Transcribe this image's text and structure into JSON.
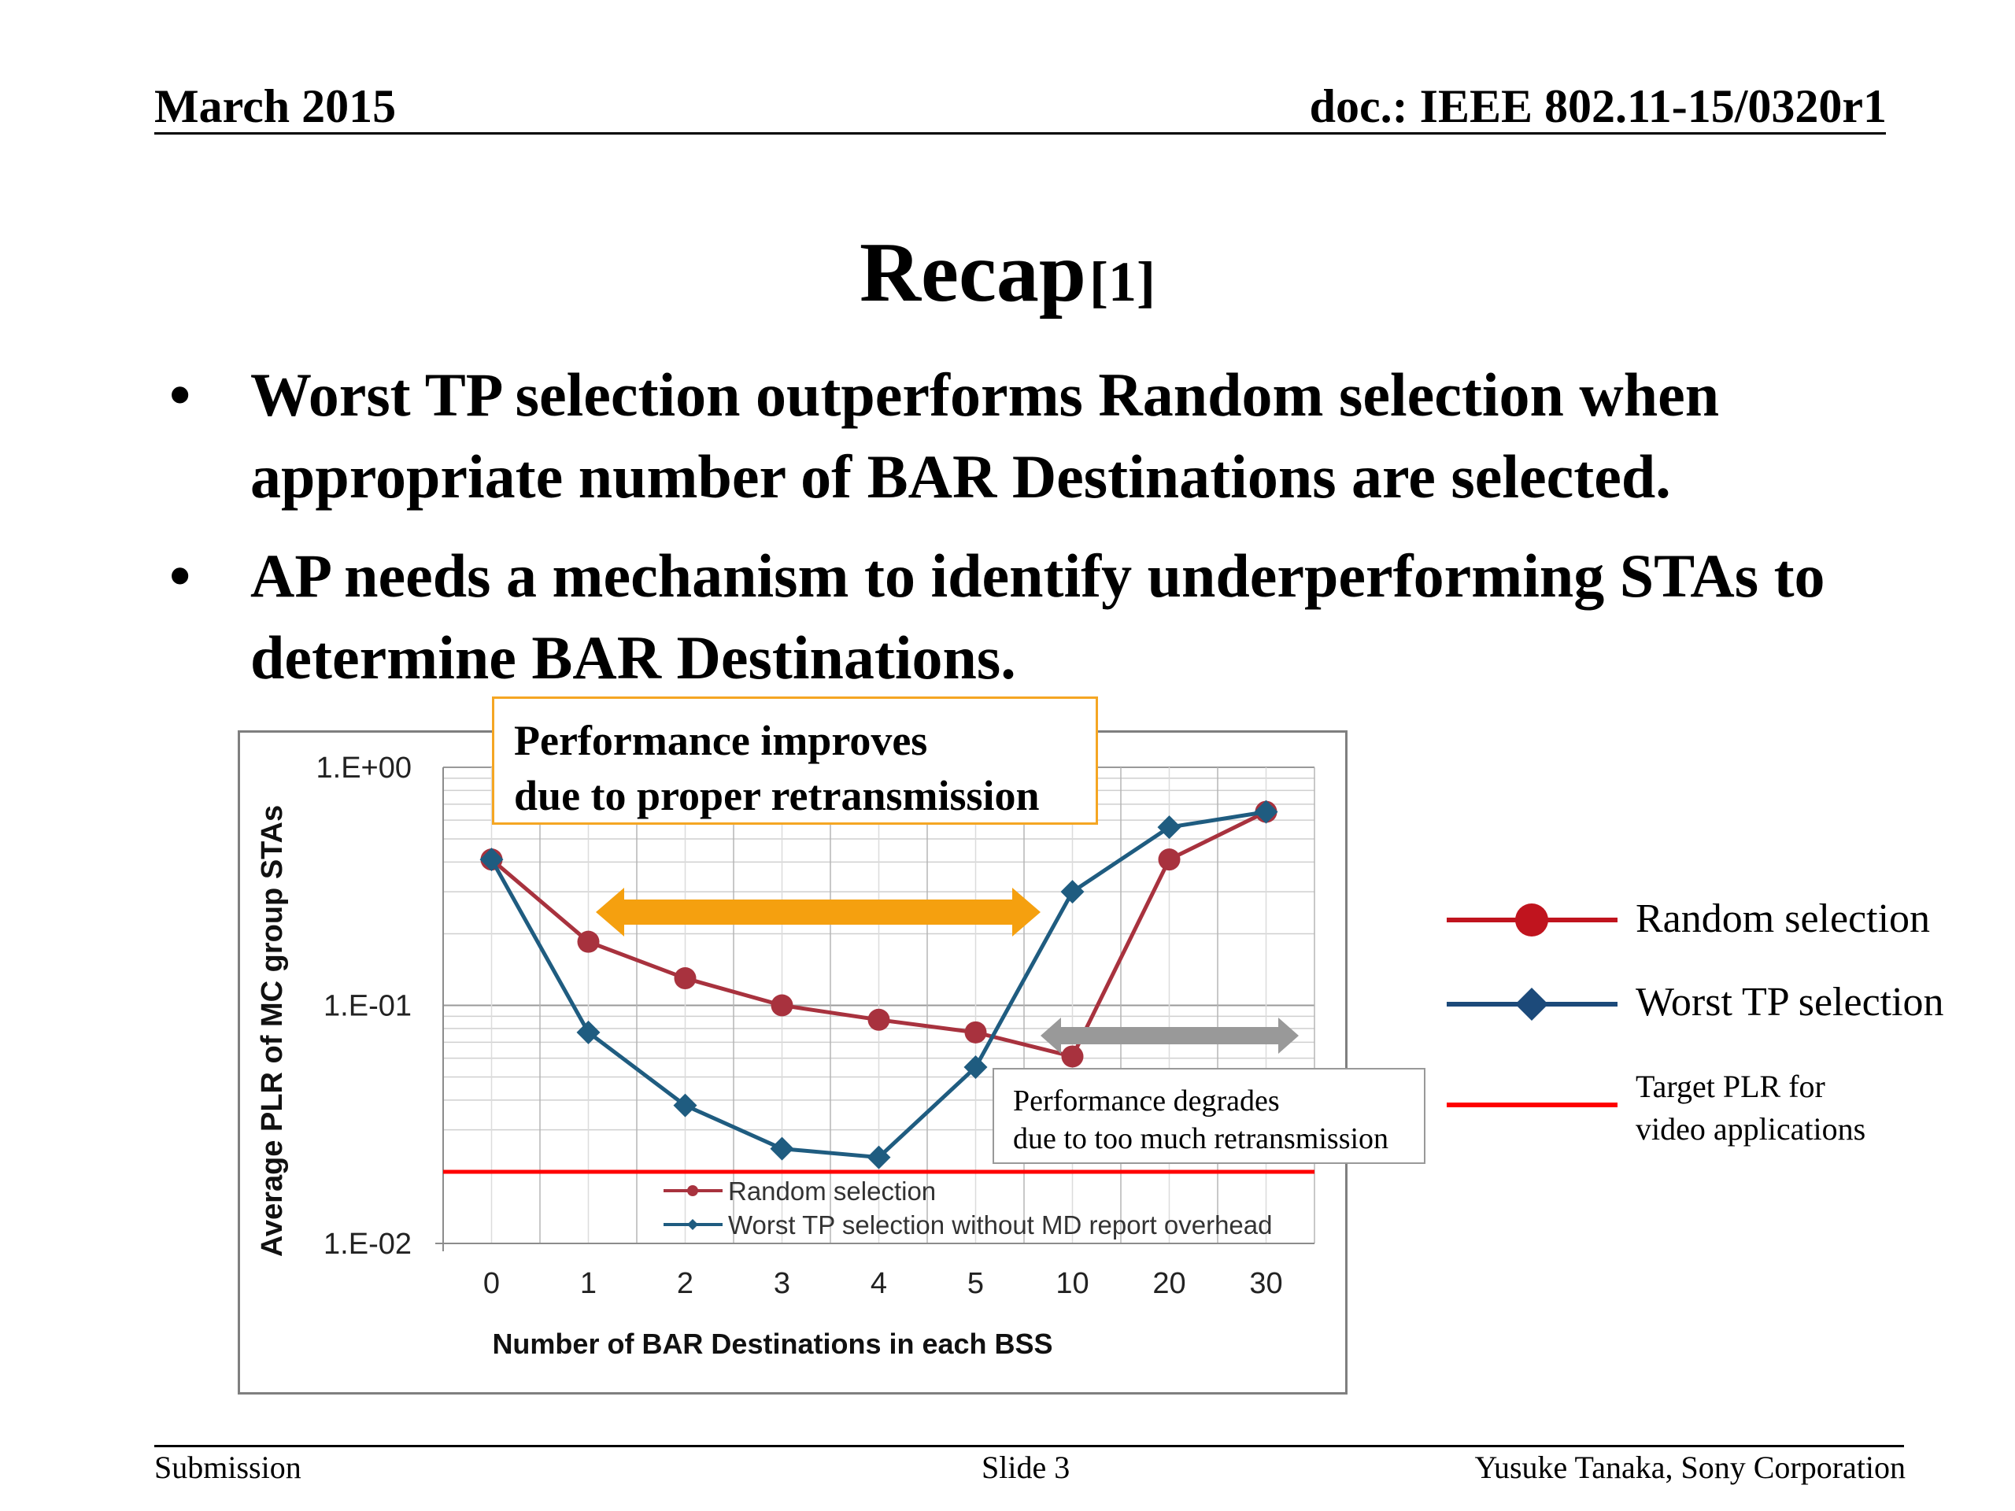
{
  "header": {
    "date": "March 2015",
    "doc": "doc.: IEEE 802.11-15/0320r1"
  },
  "title": {
    "main": "Recap",
    "ref": "[1]"
  },
  "bullets": [
    {
      "marker": "•",
      "text": "Worst TP selection outperforms Random selection when appropriate number of BAR Destinations are selected."
    },
    {
      "marker": "•",
      "text": "AP needs a mechanism to identify underperforming STAs to determine BAR Destinations."
    }
  ],
  "chart_data": {
    "type": "line",
    "y_scale": "log",
    "ylim": [
      0.01,
      1
    ],
    "y_ticks": [
      "1.E+00",
      "1.E-01",
      "1.E-02"
    ],
    "xlabel": "Number of BAR Destinations in each BSS",
    "ylabel": "Average  PLR of MC group STAs",
    "categories": [
      "0",
      "1",
      "2",
      "3",
      "4",
      "5",
      "10",
      "20",
      "30"
    ],
    "series": [
      {
        "name": "Random selection",
        "color": "#a8323e",
        "marker": "circle",
        "values": [
          0.41,
          0.185,
          0.13,
          0.1,
          0.087,
          0.077,
          0.061,
          0.41,
          0.65
        ]
      },
      {
        "name": "Worst TP selection without MD report overhead",
        "color": "#1f5c80",
        "marker": "diamond",
        "values": [
          0.41,
          0.077,
          0.038,
          0.025,
          0.023,
          0.055,
          0.3,
          0.56,
          0.65
        ]
      }
    ],
    "target_line": {
      "value": 0.02,
      "color": "#ff0000"
    },
    "grid": true,
    "legend_position": "bottom-center"
  },
  "annotations": {
    "improve_line1": "Performance improves",
    "improve_line2": "due to proper retransmission",
    "improve_color": "#f5a00f",
    "degrade_line1": "Performance degrades",
    "degrade_line2": "due to too much retransmission",
    "degrade_color": "#999999"
  },
  "side_legend": {
    "random": {
      "label": "Random selection",
      "color": "#c0141e"
    },
    "worst": {
      "label": "Worst TP selection",
      "color": "#1c4a7a"
    },
    "target": {
      "label_line1": "Target PLR for",
      "label_line2": "video applications",
      "color": "#ff0000"
    }
  },
  "footer": {
    "left": "Submission",
    "center": "Slide 3",
    "right": "Yusuke Tanaka, Sony Corporation"
  }
}
